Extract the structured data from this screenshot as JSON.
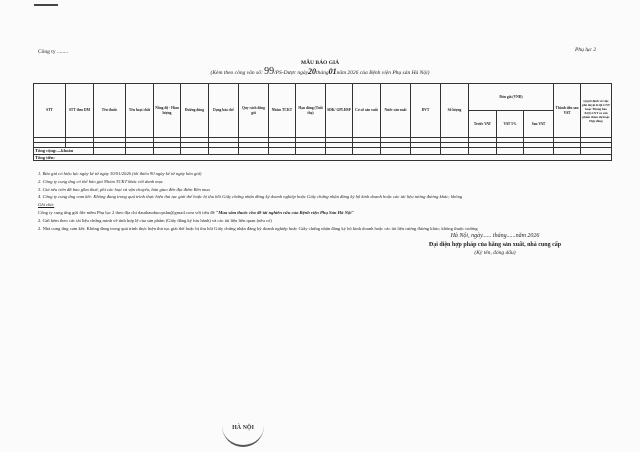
{
  "header": {
    "company": "Công ty ........",
    "appendix": "Phụ lục 2",
    "title": "MẪU BÁO GIÁ",
    "subtitle_pre": "(Kèm theo công văn số:",
    "doc_no": "99",
    "subtitle_mid1": "/PS-Dược ngày",
    "day": "20",
    "subtitle_mid2": "tháng",
    "month": "01",
    "subtitle_post": "năm 2026 của Bệnh viện Phụ sản Hà Nội)"
  },
  "table": {
    "columns": [
      "STT",
      "STT theo DM",
      "Tên thuốc",
      "Tên hoạt chất",
      "Nồng độ - Hàm lượng",
      "Đường dùng",
      "Dạng bào chế",
      "Quy cách đóng gói",
      "Nhóm TCKT",
      "Hạn dùng (Tuổi thọ)",
      "SĐK/ GPLHSP",
      "Cơ sở sản xuất",
      "Nước sản xuất",
      "ĐVT",
      "Số lượng"
    ],
    "price_group": "Đơn giá (VNĐ)",
    "price_cols": [
      "Trước VAT",
      "VAT 5%",
      "Sau VAT"
    ],
    "total_col": "Thành tiền sau VAT",
    "decision_col": "Quyết định về việc phê duyệt KQLCNT hoặc Thông báo KQLCNT có sản phẩm tham dự hoặc Hợp đồng",
    "sum_row": "Tổng cộng:....khoản",
    "total_row": "Tổng tiền:"
  },
  "notes": [
    "1. Báo giá có hiệu lực        ngày kể từ ngày 30/01/2026 (tối thiểu 90 ngày kể từ ngày báo giá)",
    "2. Công ty cung ứng có thể báo giá Nhóm TCKT khác với danh mục",
    "3. Giá nêu trên đã bao gồm thuế, phí các loại và vận chuyển, bàn giao đến địa điểm Bên mua",
    "4. Công ty cung ứng cam kết: Không đang trong quá trình thực hiện thủ tục giải thể hoặc bị thu hồi Giấy chứng nhận đăng ký doanh nghiệp hoặc Giấy chứng nhận đăng ký hộ kinh doanh hoặc các tài liệu tương đương khác; không"
  ],
  "remarks": {
    "title": "Ghi chú:",
    "line1_pre": "Công ty cung ứng gửi file mềm Phụ lục 2 theo địa chỉ dauthauduocpshn@gmail.com với tiêu đề",
    "line1_bold": "\"Mua sắm thuốc cho đề tài nghiên cứu của Bệnh viện Phụ Sản Hà Nội\"",
    "line2": "2. Gửi kèm theo các tài liệu chứng minh về tính hợp lệ của sản phẩm (Giấy đăng ký lưu hành) và các tài liệu liên quan (nếu có)",
    "line3": "2. Nhà cung ứng cam kết: Không đang trong quá trình thực hiện thủ tục giải thể hoặc bị thu hồi Giấy chứng nhận đăng ký doanh nghiệp hoặc Giấy chứng nhận đăng ký hộ kinh doanh hoặc các tài liệu tương đương khác; không thuộc trường"
  },
  "signature": {
    "date": "Hà Nội, ngày...... tháng......năm 2026",
    "title": "Đại diện hợp pháp của hãng sản xuất, nhà cung cấp",
    "note": "(Ký tên, đóng dấu)"
  },
  "stamp": "HÀ NỘI"
}
